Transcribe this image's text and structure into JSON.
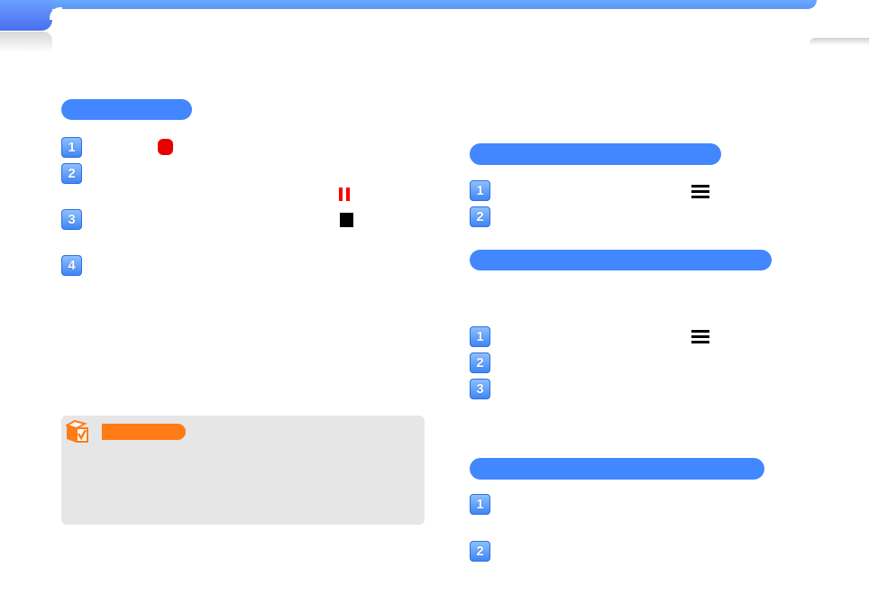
{
  "colors": {
    "accent": "#4287ff",
    "note_accent": "#ff7b16",
    "note_background": "#e6e6e6",
    "record": "#e60000",
    "pause": "#ff0000"
  },
  "left_section": {
    "steps": [
      {
        "number": "1",
        "icon": "record-icon"
      },
      {
        "number": "2",
        "icon": "pause-icon"
      },
      {
        "number": "3",
        "icon": "stop-icon"
      },
      {
        "number": "4"
      }
    ]
  },
  "note": {
    "icon": "checkbox-cube-icon"
  },
  "right_sections": [
    {
      "steps": [
        {
          "number": "1",
          "icon": "menu-icon"
        },
        {
          "number": "2"
        }
      ]
    },
    {
      "steps": [
        {
          "number": "1",
          "icon": "menu-icon"
        },
        {
          "number": "2"
        },
        {
          "number": "3"
        }
      ]
    },
    {
      "steps": [
        {
          "number": "1"
        },
        {
          "number": "2"
        }
      ]
    }
  ]
}
